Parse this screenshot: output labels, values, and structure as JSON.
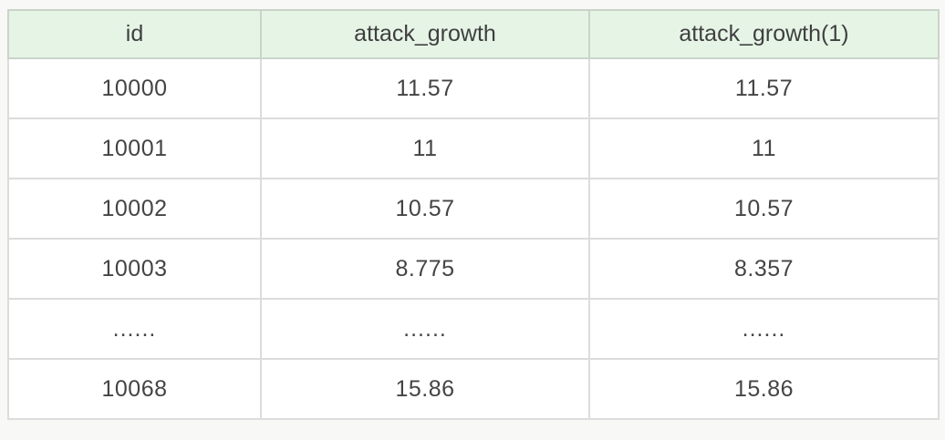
{
  "chart_data": {
    "type": "table",
    "title": "",
    "columns": [
      "id",
      "attack_growth",
      "attack_growth(1)"
    ],
    "rows": [
      [
        "10000",
        "11.57",
        "11.57"
      ],
      [
        "10001",
        "11",
        "11"
      ],
      [
        "10002",
        "10.57",
        "10.57"
      ],
      [
        "10003",
        "8.775",
        "8.357"
      ],
      [
        "......",
        "......",
        "......"
      ],
      [
        "10068",
        "15.86",
        "15.86"
      ]
    ]
  },
  "colors": {
    "header_background": "#e6f4e6",
    "header_border": "#c9d4c9",
    "body_border": "#dcdcdc",
    "text": "#444444",
    "page_background": "#f8f8f6",
    "cell_background": "#ffffff"
  }
}
